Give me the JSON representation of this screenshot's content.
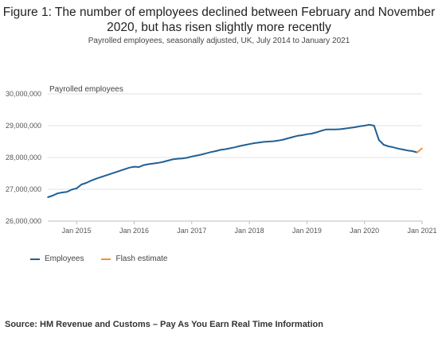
{
  "title": "Figure 1: The number of employees declined between February and November 2020, but has risen slightly more recently",
  "subtitle": "Payrolled employees, seasonally adjusted, UK, July 2014 to January 2021",
  "source": "Source: HM Revenue and Customs – Pay As You Earn Real Time Information",
  "colors": {
    "employees": "#206095",
    "flash": "#f39431",
    "grid": "#e2e2e2",
    "axis": "#bdbdbd"
  },
  "chart_data": {
    "type": "line",
    "ylabel": "Payrolled employees",
    "ylim": [
      26000000,
      30000000
    ],
    "yticks": [
      26000000,
      27000000,
      28000000,
      29000000,
      30000000
    ],
    "ytick_labels": [
      "26,000,000",
      "27,000,000",
      "28,000,000",
      "29,000,000",
      "30,000,000"
    ],
    "xlim": [
      "2014-07",
      "2021-01"
    ],
    "xticks": [
      "2015-01",
      "2016-01",
      "2017-01",
      "2018-01",
      "2019-01",
      "2020-01",
      "2021-01"
    ],
    "xtick_labels": [
      "Jan 2015",
      "Jan 2016",
      "Jan 2017",
      "Jan 2018",
      "Jan 2019",
      "Jan 2020",
      "Jan 2021"
    ],
    "grid": true,
    "legend_position": "bottom-left",
    "series": [
      {
        "name": "Employees",
        "x": [
          "2014-07",
          "2014-08",
          "2014-09",
          "2014-10",
          "2014-11",
          "2014-12",
          "2015-01",
          "2015-02",
          "2015-03",
          "2015-04",
          "2015-05",
          "2015-06",
          "2015-07",
          "2015-08",
          "2015-09",
          "2015-10",
          "2015-11",
          "2015-12",
          "2016-01",
          "2016-02",
          "2016-03",
          "2016-04",
          "2016-05",
          "2016-06",
          "2016-07",
          "2016-08",
          "2016-09",
          "2016-10",
          "2016-11",
          "2016-12",
          "2017-01",
          "2017-02",
          "2017-03",
          "2017-04",
          "2017-05",
          "2017-06",
          "2017-07",
          "2017-08",
          "2017-09",
          "2017-10",
          "2017-11",
          "2017-12",
          "2018-01",
          "2018-02",
          "2018-03",
          "2018-04",
          "2018-05",
          "2018-06",
          "2018-07",
          "2018-08",
          "2018-09",
          "2018-10",
          "2018-11",
          "2018-12",
          "2019-01",
          "2019-02",
          "2019-03",
          "2019-04",
          "2019-05",
          "2019-06",
          "2019-07",
          "2019-08",
          "2019-09",
          "2019-10",
          "2019-11",
          "2019-12",
          "2020-01",
          "2020-02",
          "2020-03",
          "2020-04",
          "2020-05",
          "2020-06",
          "2020-07",
          "2020-08",
          "2020-09",
          "2020-10",
          "2020-11",
          "2020-12"
        ],
        "values": [
          26750000,
          26800000,
          26870000,
          26900000,
          26920000,
          26990000,
          27030000,
          27150000,
          27200000,
          27270000,
          27330000,
          27380000,
          27430000,
          27480000,
          27530000,
          27580000,
          27630000,
          27680000,
          27710000,
          27700000,
          27760000,
          27790000,
          27810000,
          27830000,
          27860000,
          27900000,
          27940000,
          27960000,
          27970000,
          27990000,
          28030000,
          28060000,
          28090000,
          28130000,
          28170000,
          28200000,
          28240000,
          28260000,
          28290000,
          28320000,
          28360000,
          28390000,
          28420000,
          28450000,
          28470000,
          28490000,
          28500000,
          28510000,
          28530000,
          28560000,
          28600000,
          28640000,
          28680000,
          28700000,
          28730000,
          28750000,
          28790000,
          28840000,
          28880000,
          28880000,
          28880000,
          28890000,
          28910000,
          28930000,
          28950000,
          28980000,
          29000000,
          29030000,
          29000000,
          28550000,
          28400000,
          28350000,
          28320000,
          28280000,
          28250000,
          28220000,
          28200000,
          28160000
        ]
      },
      {
        "name": "Flash estimate",
        "x": [
          "2020-12",
          "2021-01"
        ],
        "values": [
          28160000,
          28290000
        ]
      }
    ]
  }
}
